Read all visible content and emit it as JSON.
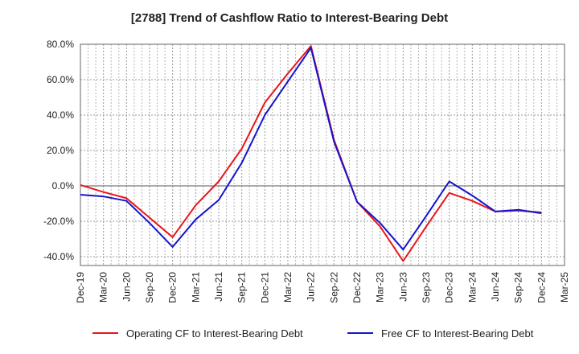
{
  "chart_data": {
    "type": "line",
    "title": "[2788]  Trend of Cashflow Ratio to Interest-Bearing Debt",
    "xlabel": "",
    "ylabel": "",
    "categories": [
      "Dec-19",
      "Mar-20",
      "Jun-20",
      "Sep-20",
      "Dec-20",
      "Mar-21",
      "Jun-21",
      "Sep-21",
      "Dec-21",
      "Mar-22",
      "Jun-22",
      "Sep-22",
      "Dec-22",
      "Mar-23",
      "Jun-23",
      "Sep-23",
      "Dec-23",
      "Mar-24",
      "Jun-24",
      "Sep-24",
      "Dec-24",
      "Mar-25"
    ],
    "ylim": [
      -45,
      80
    ],
    "yticks": [
      -40,
      -20,
      0,
      20,
      40,
      60,
      80
    ],
    "ytick_labels": [
      "-40.0%",
      "-20.0%",
      "0.0%",
      "20.0%",
      "40.0%",
      "60.0%",
      "80.0%"
    ],
    "grid": true,
    "legend_position": "bottom",
    "series": [
      {
        "name": "Operating CF to Interest-Bearing Debt",
        "color": "#e8161b",
        "values": [
          0.5,
          -3.5,
          -7.0,
          -18.0,
          -29.0,
          -11.0,
          2.5,
          21.0,
          47.0,
          63.5,
          79.0,
          26.0,
          -9.0,
          -23.0,
          -42.5,
          -23.0,
          -4.0,
          -8.5,
          -14.5,
          -14.0,
          -15.0,
          null
        ]
      },
      {
        "name": "Free CF to Interest-Bearing Debt",
        "color": "#1414cc",
        "values": [
          -5.0,
          -6.0,
          -8.5,
          -21.0,
          -34.5,
          -19.0,
          -8.0,
          13.0,
          40.0,
          59.0,
          78.0,
          25.0,
          -9.0,
          -21.0,
          -36.0,
          -17.0,
          2.5,
          -5.5,
          -14.5,
          -13.5,
          -15.5,
          null
        ]
      }
    ]
  }
}
